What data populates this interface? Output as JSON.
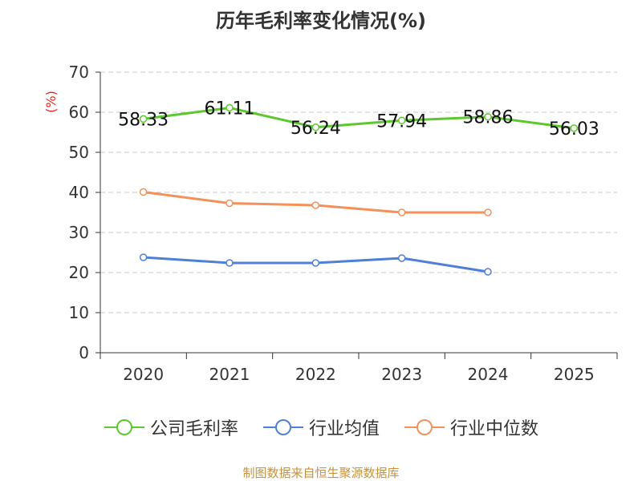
{
  "chart_data": {
    "type": "line",
    "title": "历年毛利率变化情况(%)",
    "ylabel": "(%)",
    "xlabel": "",
    "categories": [
      "2020",
      "2021",
      "2022",
      "2023",
      "2024",
      "2025"
    ],
    "ylim": [
      0,
      70
    ],
    "yticks": [
      0,
      10,
      20,
      30,
      40,
      50,
      60,
      70
    ],
    "grid": true,
    "legend_position": "bottom",
    "series": [
      {
        "name": "公司毛利率",
        "color": "#5cc72e",
        "values": [
          58.33,
          61.11,
          56.24,
          57.94,
          58.86,
          56.03
        ],
        "labels": [
          "58.33",
          "61.11",
          "56.24",
          "57.94",
          "58.86",
          "56.03"
        ]
      },
      {
        "name": "行业均值",
        "color": "#4f7fd6",
        "values": [
          23.8,
          22.4,
          22.4,
          23.6,
          20.2,
          null
        ]
      },
      {
        "name": "行业中位数",
        "color": "#f4905a",
        "values": [
          40.1,
          37.3,
          36.8,
          35.0,
          35.0,
          null
        ]
      }
    ]
  },
  "source_note": "制图数据来自恒生聚源数据库"
}
